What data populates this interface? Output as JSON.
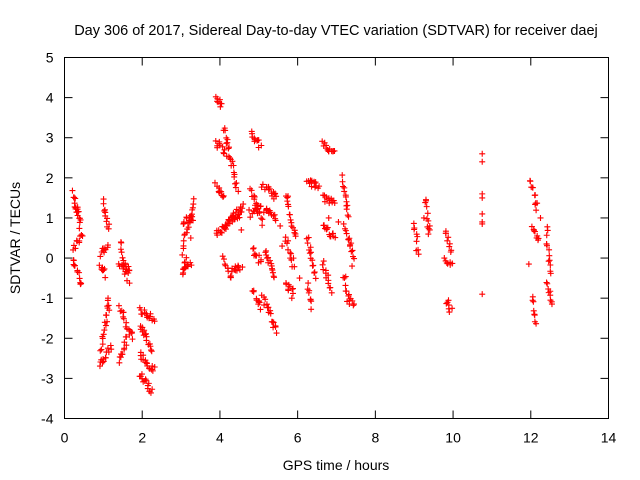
{
  "chart_data": {
    "type": "scatter",
    "title": "Day 306 of 2017, Sidereal Day-to-day VTEC variation (SDTVAR) for receiver daej",
    "xlabel": "GPS time / hours",
    "ylabel": "SDTVAR / TECUs",
    "xlim": [
      0,
      14
    ],
    "ylim": [
      -4,
      5
    ],
    "xticks": [
      "0",
      "2",
      "4",
      "6",
      "8",
      "10",
      "12",
      "14"
    ],
    "yticks": [
      "-4",
      "-3",
      "-2",
      "-1",
      "0",
      "1",
      "2",
      "3",
      "4",
      "5"
    ],
    "marker": "plus",
    "color": "#ff0000",
    "series": [
      {
        "name": "SDTVAR",
        "segments": [
          [
            0.22,
            1.6,
            0.4,
            0.8
          ],
          [
            0.25,
            1.4,
            0.42,
            1.0
          ],
          [
            0.25,
            0.2,
            0.45,
            0.6
          ],
          [
            0.22,
            0.0,
            0.42,
            -0.7
          ],
          [
            0.92,
            0.1,
            1.12,
            0.3
          ],
          [
            0.92,
            -0.2,
            1.05,
            -0.4
          ],
          [
            0.98,
            1.4,
            1.15,
            0.7
          ],
          [
            0.95,
            -2.3,
            1.15,
            -1.0
          ],
          [
            0.92,
            -2.7,
            1.2,
            -2.2
          ],
          [
            1.45,
            0.4,
            1.65,
            -0.6
          ],
          [
            1.42,
            -0.2,
            1.68,
            -0.3
          ],
          [
            1.42,
            -1.2,
            1.75,
            -2.0
          ],
          [
            1.4,
            -2.6,
            1.62,
            -2.0
          ],
          [
            1.95,
            -1.3,
            2.3,
            -1.5
          ],
          [
            1.95,
            -1.7,
            2.25,
            -2.3
          ],
          [
            1.95,
            -2.4,
            2.3,
            -2.8
          ],
          [
            1.95,
            -2.9,
            2.25,
            -3.3
          ],
          [
            3.05,
            0.3,
            3.35,
            1.4
          ],
          [
            3.05,
            0.9,
            3.3,
            1.0
          ],
          [
            3.05,
            0.0,
            3.25,
            -0.2
          ],
          [
            3.05,
            -0.4,
            3.12,
            -0.2
          ],
          [
            3.9,
            4.0,
            4.05,
            3.8
          ],
          [
            3.9,
            2.9,
            4.15,
            2.6
          ],
          [
            3.9,
            1.8,
            4.1,
            1.5
          ],
          [
            3.9,
            0.6,
            4.2,
            0.8
          ],
          [
            4.1,
            3.3,
            4.45,
            1.7
          ],
          [
            4.1,
            0.8,
            4.6,
            1.3
          ],
          [
            4.2,
            1.0,
            4.5,
            1.1
          ],
          [
            4.3,
            -0.3,
            4.55,
            -0.2
          ],
          [
            4.1,
            0.0,
            4.3,
            -0.5
          ],
          [
            4.8,
            3.1,
            5.05,
            2.8
          ],
          [
            4.8,
            1.7,
            5.1,
            0.9
          ],
          [
            4.8,
            1.1,
            5.05,
            1.3
          ],
          [
            4.85,
            0.2,
            5.05,
            -0.1
          ],
          [
            4.85,
            -0.8,
            5.05,
            -1.2
          ],
          [
            5.1,
            1.8,
            5.45,
            1.5
          ],
          [
            5.15,
            1.2,
            5.45,
            1.0
          ],
          [
            5.15,
            0.2,
            5.4,
            -0.5
          ],
          [
            5.1,
            -1.0,
            5.45,
            -1.8
          ],
          [
            5.7,
            1.6,
            5.95,
            0.5
          ],
          [
            5.7,
            0.5,
            5.9,
            -0.2
          ],
          [
            5.7,
            -0.7,
            5.9,
            -0.8
          ],
          [
            6.25,
            1.9,
            6.55,
            1.8
          ],
          [
            6.25,
            0.5,
            6.45,
            -0.5
          ],
          [
            6.25,
            -0.6,
            6.35,
            -1.2
          ],
          [
            6.65,
            2.9,
            6.95,
            2.6
          ],
          [
            6.65,
            1.5,
            6.95,
            1.4
          ],
          [
            6.65,
            0.8,
            6.95,
            0.5
          ],
          [
            6.65,
            -0.1,
            6.85,
            -0.8
          ],
          [
            7.15,
            2.0,
            7.3,
            1.0
          ],
          [
            7.2,
            0.8,
            7.45,
            0.0
          ],
          [
            7.2,
            -0.4,
            7.3,
            -1.0
          ],
          [
            7.3,
            -1.0,
            7.45,
            -1.2
          ],
          [
            9.0,
            0.8,
            9.1,
            0.1
          ],
          [
            9.3,
            1.5,
            9.35,
            0.6
          ],
          [
            9.8,
            0.7,
            9.95,
            0.2
          ],
          [
            9.8,
            0.0,
            9.95,
            -0.2
          ],
          [
            9.85,
            -1.1,
            9.95,
            -1.3
          ],
          [
            12.0,
            2.0,
            12.15,
            1.2
          ],
          [
            12.05,
            0.8,
            12.2,
            0.4
          ],
          [
            12.05,
            -1.0,
            12.15,
            -1.6
          ],
          [
            12.4,
            0.7,
            12.5,
            -0.4
          ],
          [
            12.4,
            -0.6,
            12.55,
            -1.2
          ]
        ],
        "points": [
          [
            1.1,
            -1.2
          ],
          [
            1.15,
            -1.3
          ],
          [
            1.55,
            -0.4
          ],
          [
            2.05,
            -1.8
          ],
          [
            3.25,
            0.5
          ],
          [
            4.0,
            3.95
          ],
          [
            4.55,
            0.7
          ],
          [
            4.75,
            1.2
          ],
          [
            5.35,
            -0.3
          ],
          [
            5.55,
            0.8
          ],
          [
            5.6,
            0.3
          ],
          [
            5.85,
            -1.0
          ],
          [
            6.35,
            1.9
          ],
          [
            6.05,
            -0.5
          ],
          [
            6.8,
            1.0
          ],
          [
            7.05,
            0.9
          ],
          [
            7.4,
            -0.2
          ],
          [
            9.25,
            1.0
          ],
          [
            9.4,
            0.7
          ],
          [
            9.4,
            0.8
          ],
          [
            10.75,
            2.6
          ],
          [
            10.75,
            2.4
          ],
          [
            10.75,
            1.6
          ],
          [
            10.75,
            1.5
          ],
          [
            10.75,
            1.1
          ],
          [
            10.75,
            0.9
          ],
          [
            10.75,
            0.85
          ],
          [
            10.75,
            -0.9
          ],
          [
            11.95,
            -0.15
          ],
          [
            12.25,
            1.0
          ]
        ]
      }
    ]
  }
}
